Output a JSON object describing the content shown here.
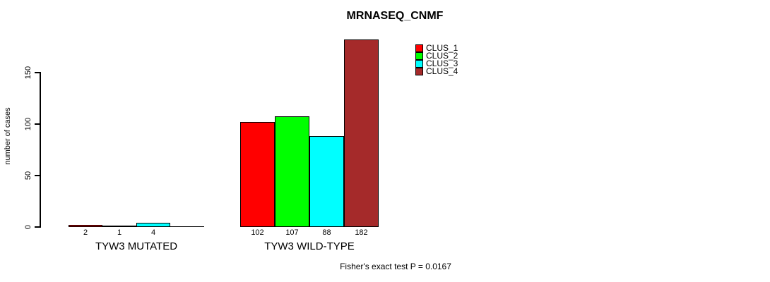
{
  "chart_data": {
    "type": "bar",
    "title": "MRNASEQ_CNMF",
    "xlabel": "",
    "ylabel": "number of cases",
    "ylim": [
      0,
      150
    ],
    "yticks": [
      0,
      50,
      100,
      150
    ],
    "yticklabels": [
      "0",
      "50",
      "100",
      "150"
    ],
    "grid": false,
    "legend_position": "top-right",
    "categories": [
      "TYW3 MUTATED",
      "TYW3 WILD-TYPE"
    ],
    "series": [
      {
        "name": "CLUS_1",
        "color": "#ff0000",
        "values": [
          2,
          102
        ]
      },
      {
        "name": "CLUS_2",
        "color": "#00ff00",
        "values": [
          1,
          107
        ]
      },
      {
        "name": "CLUS_3",
        "color": "#00ffff",
        "values": [
          4,
          88
        ]
      },
      {
        "name": "CLUS_4",
        "color": "#a52a2a",
        "values": [
          0,
          182
        ]
      }
    ],
    "value_labels": [
      [
        "2",
        "1",
        "4",
        ""
      ],
      [
        "102",
        "107",
        "88",
        "182"
      ]
    ],
    "legend": [
      {
        "label": "CLUS_1",
        "color": "#ff0000"
      },
      {
        "label": "CLUS_2",
        "color": "#00ff00"
      },
      {
        "label": "CLUS_3",
        "color": "#00ffff"
      },
      {
        "label": "CLUS_4",
        "color": "#a52a2a"
      }
    ],
    "annotation": "Fisher's exact test P = 0.0167"
  },
  "colors": {
    "axis": "#000000",
    "text": "#000000",
    "background": "#ffffff"
  }
}
